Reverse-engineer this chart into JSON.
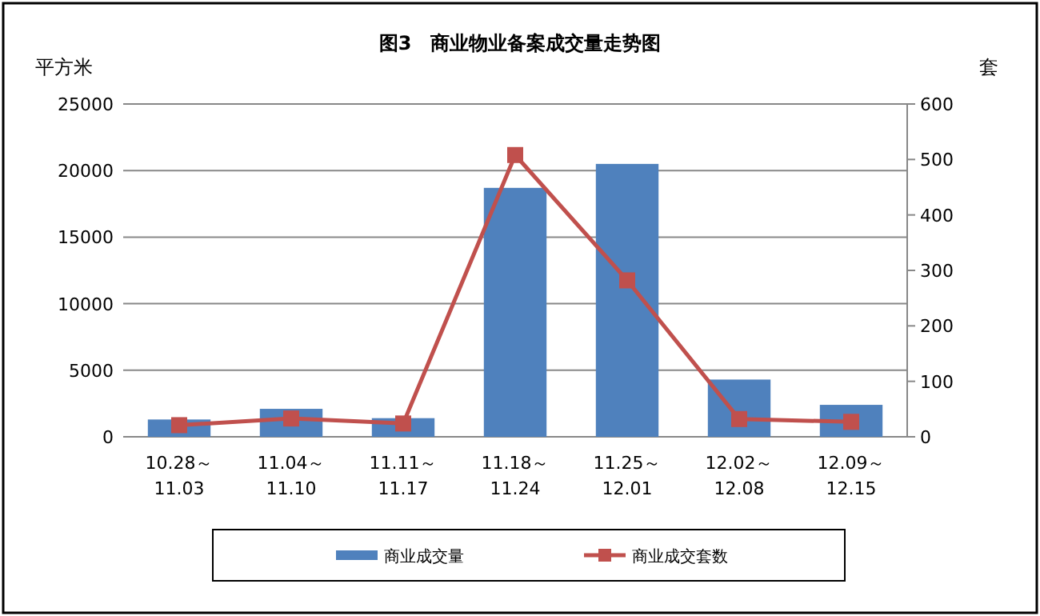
{
  "chart_data": {
    "type": "bar",
    "title": "图3　商业物业备案成交量走势图",
    "ylabel": "平方米",
    "y2label": "套",
    "categories": [
      "10.28～\n11.03",
      "11.04～\n11.10",
      "11.11～\n11.17",
      "11.18～\n11.24",
      "11.25～\n12.01",
      "12.02～\n12.08",
      "12.09～\n12.15"
    ],
    "series": [
      {
        "name": "商业成交量",
        "color": "#4f81bd",
        "values": [
          1300,
          2100,
          1400,
          18700,
          20500,
          4300,
          2400
        ]
      },
      {
        "name": "商业成交套数",
        "type": "line",
        "axis": "y2",
        "color": "#c0504d",
        "marker": "square",
        "values": [
          21,
          33,
          24,
          508,
          282,
          32,
          27
        ]
      }
    ],
    "ylim": [
      0,
      25000
    ],
    "yticks": [
      0,
      5000,
      10000,
      15000,
      20000,
      25000
    ],
    "y2lim": [
      0,
      600
    ],
    "y2ticks": [
      0,
      100,
      200,
      300,
      400,
      500,
      600
    ],
    "grid": "y",
    "legend": "bottom"
  }
}
